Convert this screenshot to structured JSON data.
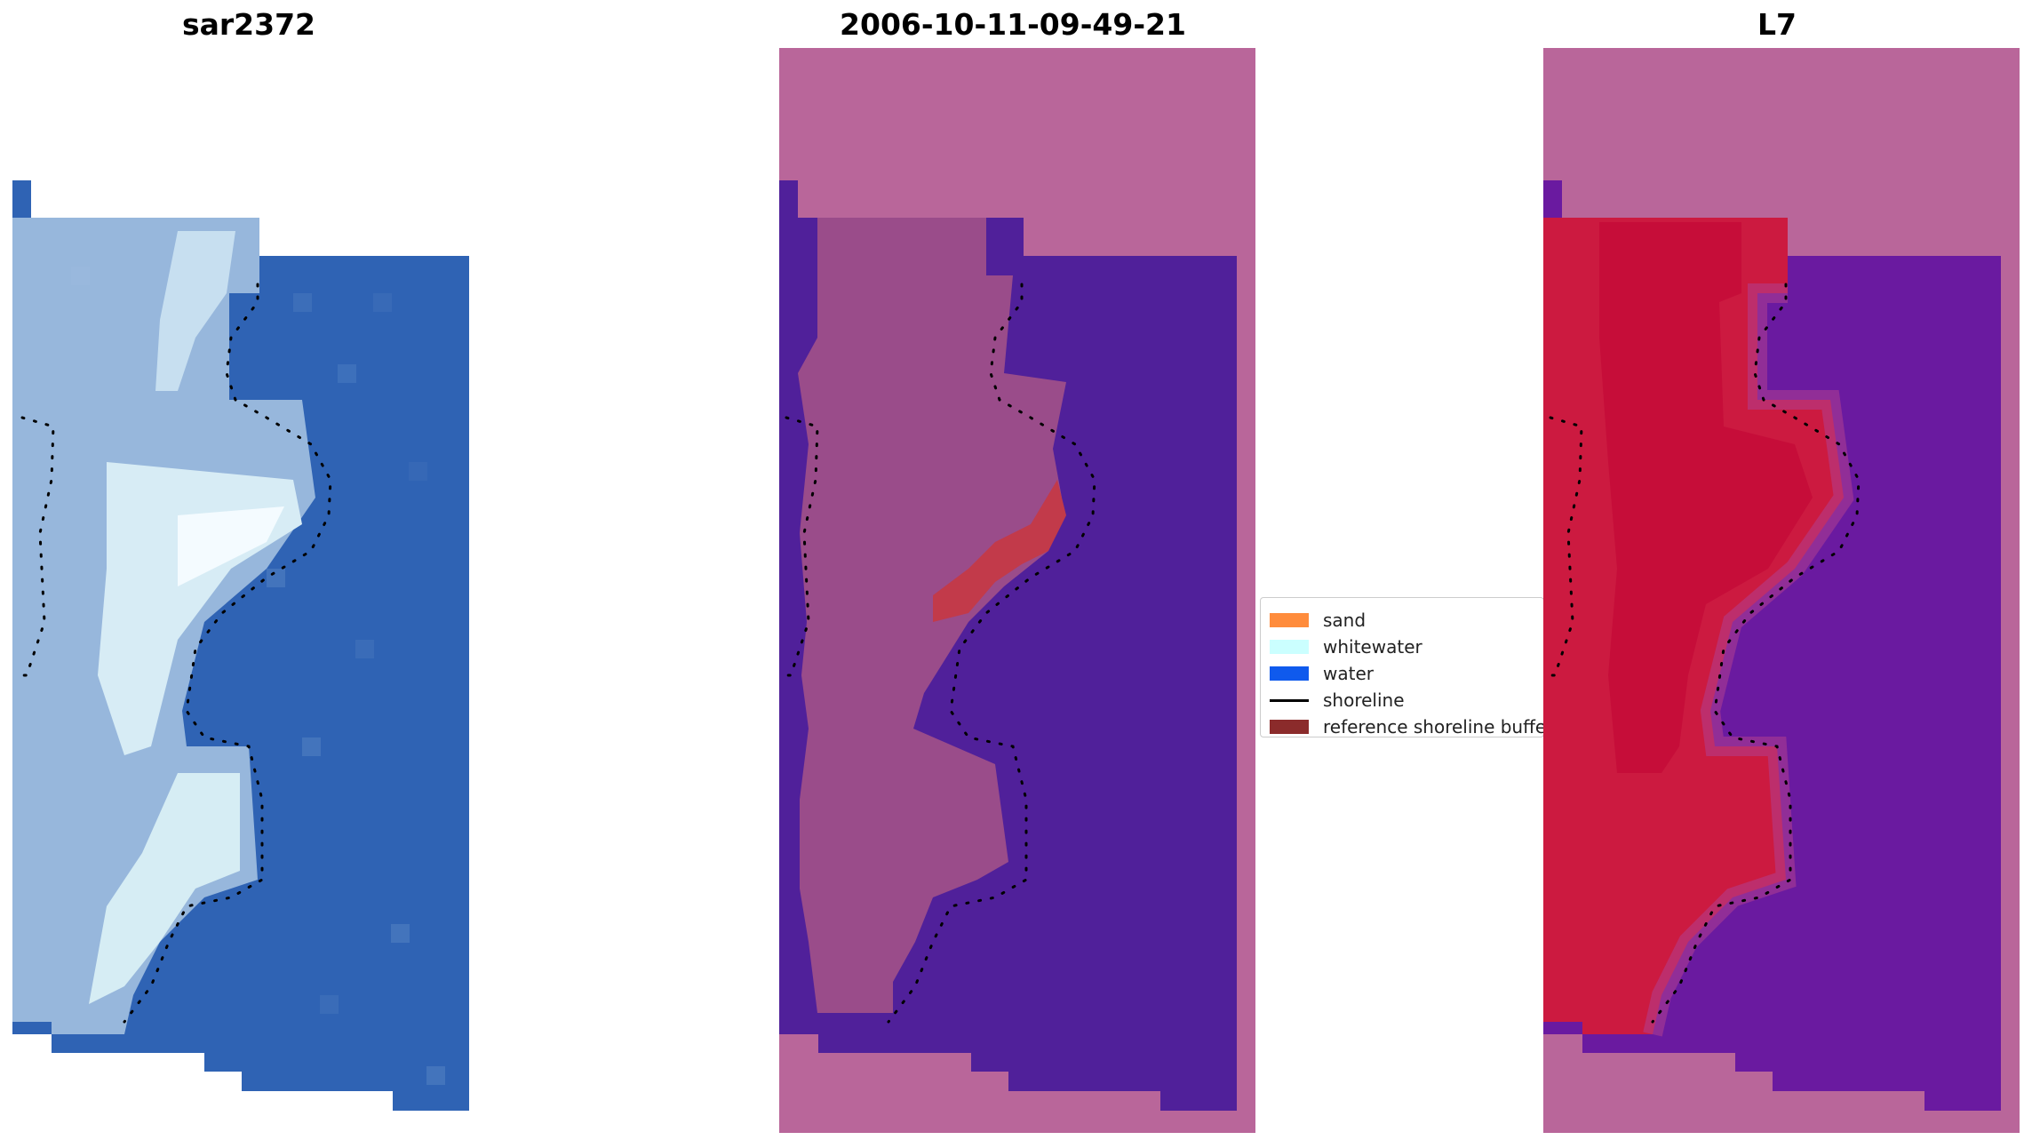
{
  "panels": {
    "rgb": {
      "title": "sar2372"
    },
    "classification": {
      "title": "2006-10-11-09-49-21"
    },
    "mndwi": {
      "title": "L7"
    }
  },
  "legend": {
    "items": [
      {
        "label": "sand",
        "color": "#ff8c3c",
        "kind": "patch"
      },
      {
        "label": "whitewater",
        "color": "#cbffff",
        "kind": "patch"
      },
      {
        "label": "water",
        "color": "#0f5aed",
        "kind": "patch"
      },
      {
        "label": "shoreline",
        "color": "#000000",
        "kind": "line"
      },
      {
        "label": "reference shoreline buffer",
        "color": "#8b2b2b",
        "kind": "patch"
      }
    ]
  },
  "colors": {
    "nodata_mask": "#b9669a",
    "water_class": "#50209a",
    "sand_overlay": "#9a4c8a",
    "buffer_red": "#c23a4a",
    "rgb_water": "#2f63b4",
    "rgb_foam": "#cfe9f3",
    "mndwi_land": "#cc1a40",
    "mndwi_water": "#6a1aa0"
  }
}
